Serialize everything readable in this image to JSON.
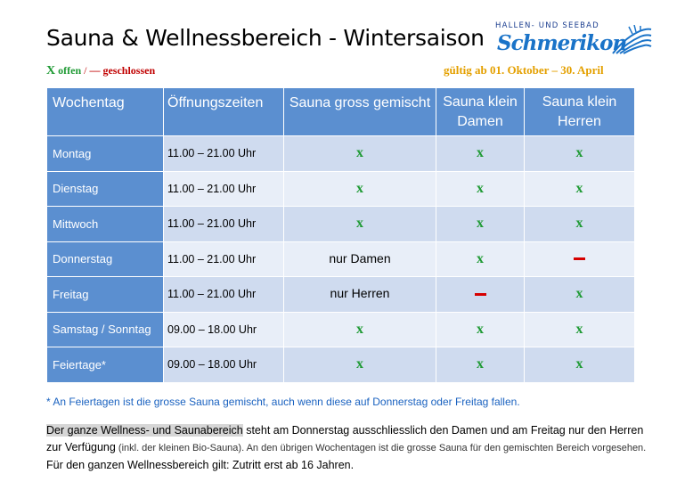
{
  "title": "Sauna & Wellnessbereich - Wintersaison",
  "logo": {
    "top_text": "HALLEN- UND SEEBAD",
    "script_text": "Schmerikon"
  },
  "legend": {
    "open_symbol": "X",
    "open_label": "offen",
    "separator": "/",
    "closed_symbol": "—",
    "closed_label": "geschlossen"
  },
  "validity": "gültig ab 01. Oktober – 30. April",
  "colors": {
    "header_blue": "#5b8fd0",
    "row_dark": "#cfdbef",
    "row_light": "#e8eef8",
    "open_green": "#1f9a34",
    "closed_red": "#d60000",
    "validity_orange": "#e4a000",
    "note_blue": "#1a62c0"
  },
  "table": {
    "headers": {
      "day": "Wochentag",
      "hours": "Öffnungszeiten",
      "sauna_big": "Sauna gross gemischt",
      "sauna_women_1": "Sauna klein",
      "sauna_women_2": "Damen",
      "sauna_men_1": "Sauna klein",
      "sauna_men_2": "Herren"
    },
    "rows": [
      {
        "day": "Montag",
        "hours": "11.00 – 21.00 Uhr",
        "big": "x",
        "women": "x",
        "men": "x"
      },
      {
        "day": "Dienstag",
        "hours": "11.00 – 21.00 Uhr",
        "big": "x",
        "women": "x",
        "men": "x"
      },
      {
        "day": "Mittwoch",
        "hours": "11.00 – 21.00 Uhr",
        "big": "x",
        "women": "x",
        "men": "x"
      },
      {
        "day": "Donnerstag",
        "hours": "11.00 – 21.00 Uhr",
        "big": "nur Damen",
        "women": "x",
        "men": ""
      },
      {
        "day": "Freitag",
        "hours": "11.00 – 21.00 Uhr",
        "big": "nur Herren",
        "women": "",
        "men": "x"
      },
      {
        "day": "Samstag / Sonntag",
        "hours": "09.00 – 18.00 Uhr",
        "big": "x",
        "women": "x",
        "men": "x"
      },
      {
        "day": "Feiertage*",
        "hours": "09.00 – 18.00 Uhr",
        "big": "x",
        "women": "x",
        "men": "x"
      }
    ]
  },
  "note": "* An Feiertagen ist die grosse Sauna gemischt, auch wenn diese auf Donnerstag oder Freitag fallen.",
  "paragraph": {
    "highlight": "Der ganze Wellness- und Saunabereich",
    "part1": " steht am Donnerstag ausschliesslich den Damen und am Freitag nur den Herren zur Verfügung",
    "part2_small": " (inkl. der kleinen Bio-Sauna). An den übrigen Wochentagen ist die grosse Sauna für den gemischten Bereich vorgesehen.",
    "part3": " Für den ganzen Wellnessbereich gilt: Zutritt erst ab 16 Jahren."
  }
}
